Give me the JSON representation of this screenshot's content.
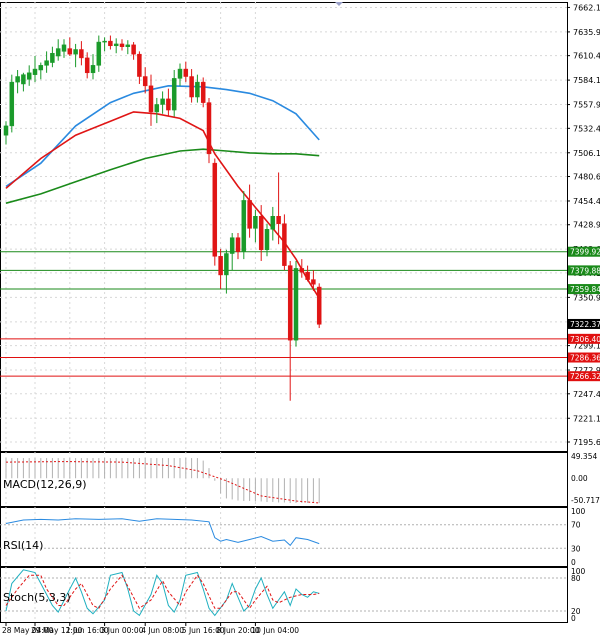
{
  "chart_data": {
    "type": "candlestick",
    "grid": true,
    "main": {
      "y_ticks": [
        7662.15,
        7635.9,
        7610.4,
        7584.15,
        7557.9,
        7532.4,
        7506.15,
        7480.65,
        7454.4,
        7428.9,
        7402.65,
        7377.15,
        7350.9,
        7324.65,
        7299.15,
        7272.9,
        7247.4,
        7221.15,
        7195.65
      ],
      "ylim": [
        7186.0,
        7668.0
      ],
      "current_price": "7322.37",
      "price_lines": [
        {
          "label": "7399.92",
          "value": 7399.92,
          "color": "#1a8a1a"
        },
        {
          "label": "7379.88",
          "value": 7379.88,
          "color": "#1a8a1a"
        },
        {
          "label": "7359.84",
          "value": 7359.84,
          "color": "#1a8a1a"
        },
        {
          "label": "7306.40",
          "value": 7306.4,
          "color": "#e01010"
        },
        {
          "label": "7286.36",
          "value": 7286.36,
          "color": "#e01010"
        },
        {
          "label": "7266.32",
          "value": 7266.32,
          "color": "#e01010"
        }
      ],
      "candles": [
        {
          "o": 7525,
          "h": 7540,
          "l": 7515,
          "c": 7535
        },
        {
          "o": 7535,
          "h": 7590,
          "l": 7528,
          "c": 7582
        },
        {
          "o": 7582,
          "h": 7595,
          "l": 7570,
          "c": 7588
        },
        {
          "o": 7580,
          "h": 7592,
          "l": 7572,
          "c": 7590
        },
        {
          "o": 7585,
          "h": 7600,
          "l": 7578,
          "c": 7592
        },
        {
          "o": 7590,
          "h": 7610,
          "l": 7582,
          "c": 7596
        },
        {
          "o": 7595,
          "h": 7603,
          "l": 7585,
          "c": 7600
        },
        {
          "o": 7600,
          "h": 7615,
          "l": 7592,
          "c": 7605
        },
        {
          "o": 7603,
          "h": 7620,
          "l": 7598,
          "c": 7613
        },
        {
          "o": 7610,
          "h": 7628,
          "l": 7605,
          "c": 7618
        },
        {
          "o": 7615,
          "h": 7628,
          "l": 7608,
          "c": 7622
        },
        {
          "o": 7618,
          "h": 7630,
          "l": 7610,
          "c": 7612
        },
        {
          "o": 7612,
          "h": 7623,
          "l": 7598,
          "c": 7617
        },
        {
          "o": 7617,
          "h": 7626,
          "l": 7600,
          "c": 7608
        },
        {
          "o": 7608,
          "h": 7614,
          "l": 7586,
          "c": 7592
        },
        {
          "o": 7592,
          "h": 7612,
          "l": 7585,
          "c": 7600
        },
        {
          "o": 7600,
          "h": 7632,
          "l": 7593,
          "c": 7625
        },
        {
          "o": 7625,
          "h": 7630,
          "l": 7615,
          "c": 7626
        },
        {
          "o": 7626,
          "h": 7632,
          "l": 7617,
          "c": 7621
        },
        {
          "o": 7621,
          "h": 7629,
          "l": 7613,
          "c": 7623
        },
        {
          "o": 7623,
          "h": 7628,
          "l": 7616,
          "c": 7620
        },
        {
          "o": 7620,
          "h": 7627,
          "l": 7612,
          "c": 7622
        },
        {
          "o": 7622,
          "h": 7625,
          "l": 7606,
          "c": 7612
        },
        {
          "o": 7612,
          "h": 7615,
          "l": 7580,
          "c": 7588
        },
        {
          "o": 7588,
          "h": 7598,
          "l": 7570,
          "c": 7578
        },
        {
          "o": 7578,
          "h": 7590,
          "l": 7535,
          "c": 7550
        },
        {
          "o": 7550,
          "h": 7565,
          "l": 7538,
          "c": 7558
        },
        {
          "o": 7558,
          "h": 7572,
          "l": 7548,
          "c": 7564
        },
        {
          "o": 7564,
          "h": 7575,
          "l": 7546,
          "c": 7552
        },
        {
          "o": 7552,
          "h": 7595,
          "l": 7545,
          "c": 7586
        },
        {
          "o": 7586,
          "h": 7602,
          "l": 7578,
          "c": 7596
        },
        {
          "o": 7596,
          "h": 7604,
          "l": 7582,
          "c": 7588
        },
        {
          "o": 7588,
          "h": 7596,
          "l": 7560,
          "c": 7566
        },
        {
          "o": 7566,
          "h": 7590,
          "l": 7560,
          "c": 7582
        },
        {
          "o": 7582,
          "h": 7587,
          "l": 7555,
          "c": 7560
        },
        {
          "o": 7560,
          "h": 7565,
          "l": 7495,
          "c": 7505
        },
        {
          "o": 7495,
          "h": 7500,
          "l": 7385,
          "c": 7395
        },
        {
          "o": 7395,
          "h": 7403,
          "l": 7360,
          "c": 7375
        },
        {
          "o": 7375,
          "h": 7402,
          "l": 7355,
          "c": 7398
        },
        {
          "o": 7398,
          "h": 7420,
          "l": 7380,
          "c": 7415
        },
        {
          "o": 7415,
          "h": 7420,
          "l": 7392,
          "c": 7400
        },
        {
          "o": 7400,
          "h": 7465,
          "l": 7392,
          "c": 7455
        },
        {
          "o": 7455,
          "h": 7472,
          "l": 7415,
          "c": 7425
        },
        {
          "o": 7425,
          "h": 7445,
          "l": 7410,
          "c": 7438
        },
        {
          "o": 7438,
          "h": 7450,
          "l": 7390,
          "c": 7402
        },
        {
          "o": 7402,
          "h": 7430,
          "l": 7395,
          "c": 7424
        },
        {
          "o": 7424,
          "h": 7448,
          "l": 7412,
          "c": 7438
        },
        {
          "o": 7438,
          "h": 7485,
          "l": 7408,
          "c": 7430
        },
        {
          "o": 7430,
          "h": 7440,
          "l": 7380,
          "c": 7385
        },
        {
          "o": 7385,
          "h": 7390,
          "l": 7240,
          "c": 7305
        },
        {
          "o": 7305,
          "h": 7390,
          "l": 7298,
          "c": 7382
        },
        {
          "o": 7382,
          "h": 7392,
          "l": 7372,
          "c": 7378
        },
        {
          "o": 7378,
          "h": 7385,
          "l": 7368,
          "c": 7370
        },
        {
          "o": 7370,
          "h": 7380,
          "l": 7358,
          "c": 7365
        },
        {
          "o": 7362,
          "h": 7366,
          "l": 7318,
          "c": 7322
        }
      ],
      "ma_red": [
        [
          0,
          7468
        ],
        [
          6,
          7500
        ],
        [
          12,
          7525
        ],
        [
          18,
          7540
        ],
        [
          22,
          7550
        ],
        [
          26,
          7548
        ],
        [
          30,
          7543
        ],
        [
          34,
          7530
        ],
        [
          36,
          7505
        ],
        [
          40,
          7470
        ],
        [
          44,
          7440
        ],
        [
          48,
          7410
        ],
        [
          50,
          7392
        ],
        [
          52,
          7370
        ],
        [
          54,
          7350
        ]
      ],
      "ma_blue": [
        [
          0,
          7470
        ],
        [
          6,
          7495
        ],
        [
          12,
          7535
        ],
        [
          18,
          7560
        ],
        [
          22,
          7570
        ],
        [
          28,
          7578
        ],
        [
          34,
          7577
        ],
        [
          38,
          7574
        ],
        [
          42,
          7570
        ],
        [
          46,
          7562
        ],
        [
          50,
          7548
        ],
        [
          54,
          7520
        ]
      ],
      "ma_green": [
        [
          0,
          7452
        ],
        [
          6,
          7462
        ],
        [
          12,
          7475
        ],
        [
          18,
          7488
        ],
        [
          24,
          7500
        ],
        [
          30,
          7508
        ],
        [
          34,
          7510
        ],
        [
          38,
          7508
        ],
        [
          42,
          7506
        ],
        [
          46,
          7505
        ],
        [
          50,
          7505
        ],
        [
          54,
          7503
        ]
      ]
    },
    "macd": {
      "label": "MACD(12,26,9)",
      "y_ticks": [
        "49.354",
        "0.00",
        "-50.717"
      ],
      "ylim": [
        -55,
        52
      ],
      "histogram": [
        40,
        40,
        40,
        40,
        40,
        40,
        40,
        40,
        40,
        40,
        40,
        40,
        40,
        40,
        40,
        40,
        40,
        40,
        40,
        40,
        40,
        40,
        40,
        40,
        40,
        40,
        40,
        40,
        40,
        40,
        40,
        40,
        40,
        40,
        35,
        20,
        -5,
        -30,
        -40,
        -42,
        -44,
        -45,
        -45,
        -46,
        -46,
        -47,
        -47,
        -48,
        -48,
        -49,
        -49,
        -49,
        -49,
        -49,
        -49
      ],
      "signal": [
        [
          0,
          32
        ],
        [
          10,
          33
        ],
        [
          20,
          32
        ],
        [
          28,
          25
        ],
        [
          33,
          15
        ],
        [
          38,
          -5
        ],
        [
          44,
          -35
        ],
        [
          50,
          -45
        ],
        [
          54,
          -49
        ]
      ]
    },
    "rsi": {
      "label": "RSI(14)",
      "y_ticks": [
        "100",
        "70",
        "30",
        "0"
      ],
      "ylim": [
        0,
        100
      ],
      "levels": [
        70,
        30
      ],
      "line": [
        [
          0,
          72
        ],
        [
          3,
          78
        ],
        [
          6,
          79
        ],
        [
          9,
          78
        ],
        [
          12,
          80
        ],
        [
          16,
          79
        ],
        [
          20,
          80
        ],
        [
          23,
          76
        ],
        [
          26,
          80
        ],
        [
          29,
          79
        ],
        [
          32,
          78
        ],
        [
          35,
          75
        ],
        [
          36,
          48
        ],
        [
          37,
          42
        ],
        [
          38,
          45
        ],
        [
          40,
          40
        ],
        [
          42,
          45
        ],
        [
          44,
          50
        ],
        [
          46,
          42
        ],
        [
          48,
          44
        ],
        [
          49,
          35
        ],
        [
          50,
          48
        ],
        [
          52,
          45
        ],
        [
          54,
          38
        ]
      ]
    },
    "stoch": {
      "label": "Stoch(5,3,3)",
      "y_ticks": [
        "100",
        "80",
        "20",
        "0"
      ],
      "ylim": [
        0,
        100
      ],
      "levels": [
        80,
        20
      ],
      "main_line": [
        [
          0,
          20
        ],
        [
          1,
          70
        ],
        [
          3,
          95
        ],
        [
          5,
          90
        ],
        [
          6,
          70
        ],
        [
          8,
          30
        ],
        [
          9,
          18
        ],
        [
          11,
          60
        ],
        [
          12,
          80
        ],
        [
          13,
          55
        ],
        [
          14,
          25
        ],
        [
          15,
          15
        ],
        [
          17,
          40
        ],
        [
          18,
          85
        ],
        [
          20,
          90
        ],
        [
          21,
          60
        ],
        [
          22,
          20
        ],
        [
          23,
          12
        ],
        [
          25,
          50
        ],
        [
          26,
          85
        ],
        [
          27,
          70
        ],
        [
          28,
          30
        ],
        [
          29,
          18
        ],
        [
          30,
          40
        ],
        [
          31,
          85
        ],
        [
          33,
          90
        ],
        [
          34,
          60
        ],
        [
          35,
          25
        ],
        [
          36,
          12
        ],
        [
          38,
          40
        ],
        [
          39,
          70
        ],
        [
          40,
          45
        ],
        [
          41,
          20
        ],
        [
          42,
          30
        ],
        [
          43,
          60
        ],
        [
          44,
          80
        ],
        [
          45,
          50
        ],
        [
          46,
          25
        ],
        [
          47,
          40
        ],
        [
          48,
          55
        ],
        [
          49,
          30
        ],
        [
          50,
          60
        ],
        [
          51,
          50
        ],
        [
          52,
          45
        ],
        [
          53,
          55
        ],
        [
          54,
          52
        ]
      ],
      "signal_line": [
        [
          0,
          30
        ],
        [
          2,
          60
        ],
        [
          4,
          85
        ],
        [
          6,
          85
        ],
        [
          7,
          60
        ],
        [
          9,
          30
        ],
        [
          10,
          30
        ],
        [
          12,
          60
        ],
        [
          13,
          70
        ],
        [
          15,
          30
        ],
        [
          16,
          25
        ],
        [
          18,
          60
        ],
        [
          20,
          85
        ],
        [
          22,
          45
        ],
        [
          23,
          25
        ],
        [
          25,
          40
        ],
        [
          27,
          75
        ],
        [
          28,
          55
        ],
        [
          30,
          30
        ],
        [
          31,
          55
        ],
        [
          33,
          85
        ],
        [
          34,
          70
        ],
        [
          36,
          25
        ],
        [
          37,
          25
        ],
        [
          39,
          55
        ],
        [
          40,
          55
        ],
        [
          42,
          25
        ],
        [
          43,
          40
        ],
        [
          45,
          65
        ],
        [
          46,
          40
        ],
        [
          47,
          35
        ],
        [
          49,
          45
        ],
        [
          51,
          50
        ],
        [
          53,
          50
        ],
        [
          54,
          52
        ]
      ]
    },
    "x_ticks": [
      {
        "label": "28 May 04:00",
        "i": 0
      },
      {
        "label": "29 May 12:00",
        "i": 5
      },
      {
        "label": "1 Jun 16:00",
        "i": 11
      },
      {
        "label": "3 Jun 00:00",
        "i": 17
      },
      {
        "label": "4 Jun 08:00",
        "i": 24
      },
      {
        "label": "5 Jun 16:00",
        "i": 31
      },
      {
        "label": "8 Jun 20:00",
        "i": 37
      },
      {
        "label": "10 Jun 04:00",
        "i": 43
      }
    ],
    "colors": {
      "bull": "#1a9a2a",
      "bear": "#e01515",
      "ma_red": "#e01515",
      "ma_blue": "#2a8ae0",
      "ma_green": "#1a8a1a",
      "macd_hist": "#b0b0b0",
      "macd_signal": "#e01515",
      "rsi": "#2a8ae0",
      "stoch_main": "#20b0c0",
      "stoch_signal": "#e01515",
      "grid": "#d8d8d8",
      "axis": "#000000"
    }
  }
}
